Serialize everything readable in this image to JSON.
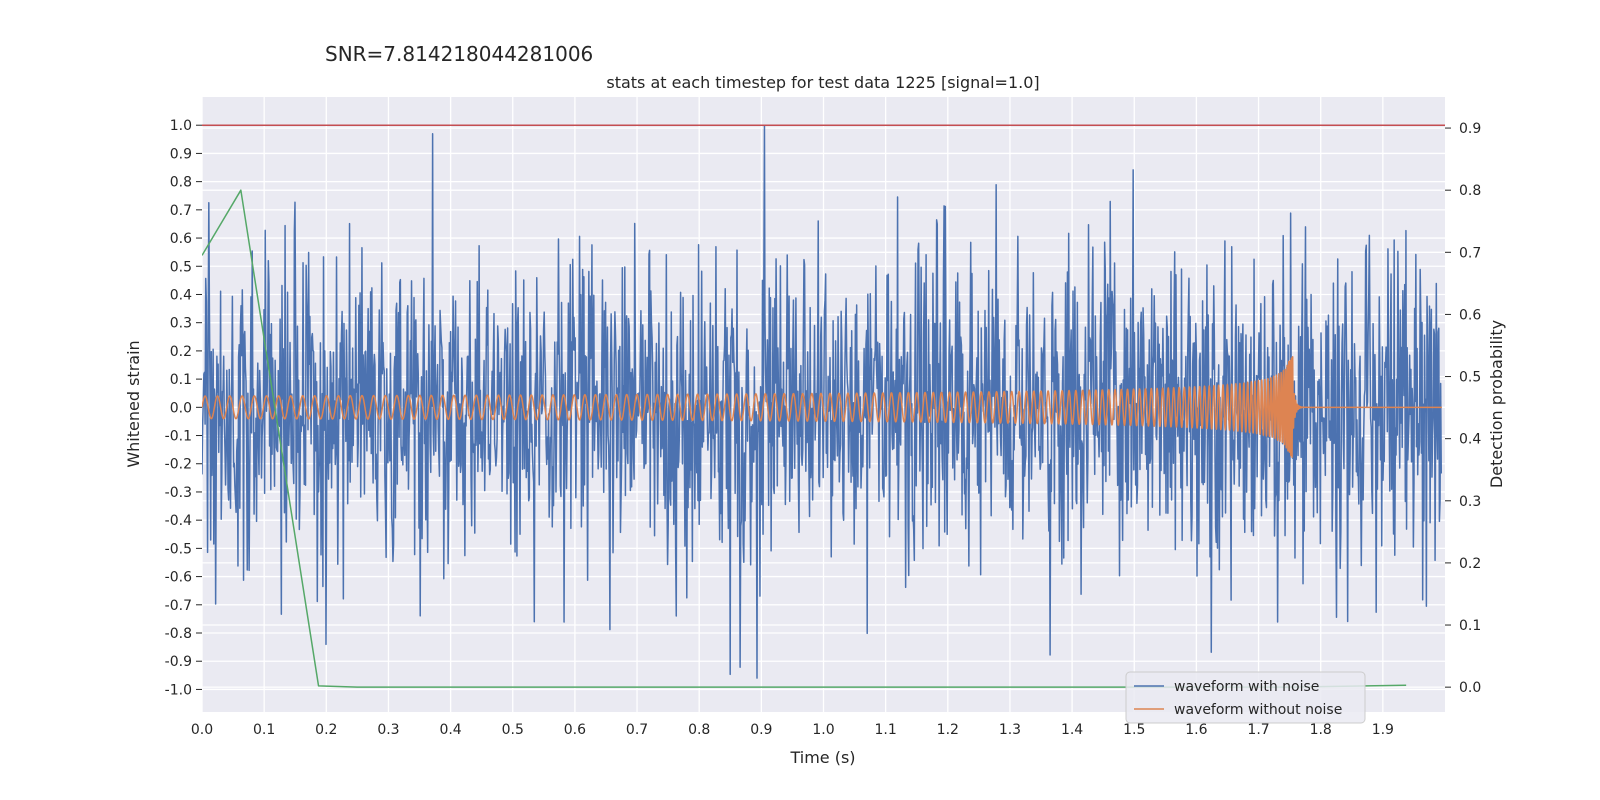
{
  "chart_data": {
    "type": "line",
    "suptitle": "SNR=7.814218044281006",
    "title": "stats at each timestep for test data 1225 [signal=1.0]",
    "xlabel": "Time (s)",
    "ylabel": "Whitened strain",
    "y2label": "Detection probability",
    "xlim": [
      0.0,
      2.0
    ],
    "ylim": [
      -1.08,
      1.1
    ],
    "y2lim": [
      -0.04,
      0.95
    ],
    "xticks": [
      "0.0",
      "0.1",
      "0.2",
      "0.3",
      "0.4",
      "0.5",
      "0.6",
      "0.7",
      "0.8",
      "0.9",
      "1.0",
      "1.1",
      "1.2",
      "1.3",
      "1.4",
      "1.5",
      "1.6",
      "1.7",
      "1.8",
      "1.9"
    ],
    "yticks": [
      "1.0",
      "0.9",
      "0.8",
      "0.7",
      "0.6",
      "0.5",
      "0.4",
      "0.3",
      "0.2",
      "0.1",
      "0.0",
      "-0.1",
      "-0.2",
      "-0.3",
      "-0.4",
      "-0.5",
      "-0.6",
      "-0.7",
      "-0.8",
      "-0.9",
      "-1.0"
    ],
    "y2ticks": [
      "0.9",
      "0.8",
      "0.7",
      "0.6",
      "0.5",
      "0.4",
      "0.3",
      "0.2",
      "0.1",
      "0.0"
    ],
    "threshold": {
      "value": 1.0,
      "color": "#c44e52"
    },
    "series": [
      {
        "name": "waveform with noise",
        "color": "#4c72b0",
        "axis": "left",
        "kind": "noise",
        "amplitude_std": 0.28,
        "min": -0.96,
        "max": 1.0,
        "n_points": 2000
      },
      {
        "name": "waveform without noise",
        "color": "#dd8452",
        "axis": "left",
        "kind": "chirp",
        "base_amplitude": 0.04,
        "peak_amplitude": 0.18,
        "merger_time": 1.755
      },
      {
        "name": "detection probability",
        "color": "#55a868",
        "axis": "right",
        "legend": false,
        "x": [
          0.0,
          0.0625,
          0.1875,
          0.25,
          0.3125,
          0.5,
          0.75,
          1.0,
          1.25,
          1.5,
          1.75,
          1.9375
        ],
        "y": [
          0.695,
          0.8,
          0.002,
          0.0,
          0.0,
          0.0,
          0.0,
          0.0,
          0.0,
          0.0,
          0.0,
          0.003
        ]
      }
    ],
    "legend": {
      "position": "lower-right",
      "entries": [
        {
          "label": "waveform with noise",
          "color": "#4c72b0"
        },
        {
          "label": "waveform without noise",
          "color": "#dd8452"
        }
      ]
    },
    "colors": {
      "plot_bg": "#eaeaf2",
      "grid": "#ffffff"
    }
  }
}
